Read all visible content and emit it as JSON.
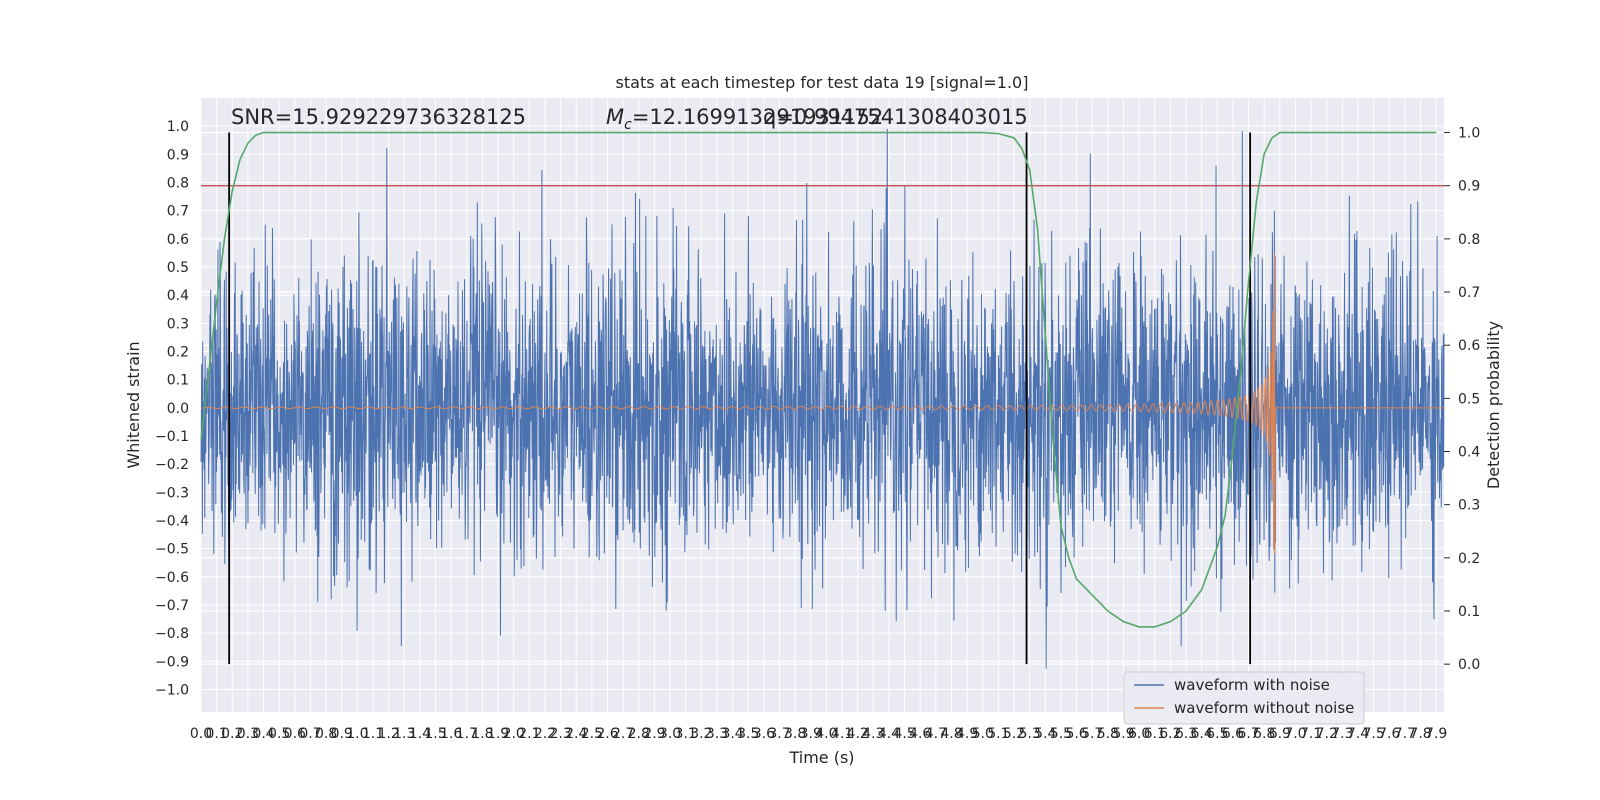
{
  "chart_data": {
    "type": "line",
    "title": "stats at each timestep for test data 19 [signal=1.0]",
    "xlabel": "Time (s)",
    "ylabel": "Whitened strain",
    "ylabel_right": "Detection probability",
    "xlim": [
      0.0,
      7.95
    ],
    "ylim": [
      -1.08,
      1.1
    ],
    "ylim_right": [
      -0.09,
      1.065
    ],
    "x_ticks": [
      "0.0",
      "0.1",
      "0.2",
      "0.3",
      "0.4",
      "0.5",
      "0.6",
      "0.7",
      "0.8",
      "0.9",
      "1.0",
      "1.1",
      "1.2",
      "1.3",
      "1.4",
      "1.5",
      "1.6",
      "1.7",
      "1.8",
      "1.9",
      "2.0",
      "2.1",
      "2.2",
      "2.3",
      "2.4",
      "2.5",
      "2.6",
      "2.7",
      "2.8",
      "2.9",
      "3.0",
      "3.1",
      "3.2",
      "3.3",
      "3.4",
      "3.5",
      "3.6",
      "3.7",
      "3.8",
      "3.9",
      "4.0",
      "4.1",
      "4.2",
      "4.3",
      "4.4",
      "4.5",
      "4.6",
      "4.7",
      "4.8",
      "4.9",
      "5.0",
      "5.1",
      "5.2",
      "5.3",
      "5.4",
      "5.5",
      "5.6",
      "5.7",
      "5.8",
      "5.9",
      "6.0",
      "6.1",
      "6.2",
      "6.3",
      "6.4",
      "6.5",
      "6.6",
      "6.7",
      "6.8",
      "6.9",
      "7.0",
      "7.1",
      "7.2",
      "7.3",
      "7.4",
      "7.5",
      "7.6",
      "7.7",
      "7.8",
      "7.9"
    ],
    "y_ticks_left": [
      "1.0",
      "0.9",
      "0.8",
      "0.7",
      "0.6",
      "0.5",
      "0.4",
      "0.3",
      "0.2",
      "0.1",
      "0.0",
      "−0.1",
      "−0.2",
      "−0.3",
      "−0.4",
      "−0.5",
      "−0.6",
      "−0.7",
      "−0.8",
      "−0.9",
      "−1.0"
    ],
    "y_ticks_right": [
      "1.0",
      "0.9",
      "0.8",
      "0.7",
      "0.6",
      "0.5",
      "0.4",
      "0.3",
      "0.2",
      "0.1",
      "0.0"
    ],
    "annotations": {
      "snr": "SNR=15.929229736328125",
      "mc": "=12.169913291931152",
      "mc_symbol": "M",
      "mc_subscript": "c",
      "q": "q=0.9947541308403015"
    },
    "threshold_line": {
      "y_right": 0.9,
      "color": "#c44e52"
    },
    "vertical_lines": [
      0.18,
      5.28,
      6.71
    ],
    "series": [
      {
        "name": "waveform with noise",
        "color": "#4c72b0"
      },
      {
        "name": "waveform without noise",
        "color": "#dd8452"
      },
      {
        "color": "#55a868",
        "axis": "right",
        "x": [
          0.0,
          0.05,
          0.1,
          0.15,
          0.2,
          0.25,
          0.3,
          0.35,
          0.4,
          0.5,
          0.6,
          1.0,
          2.0,
          3.0,
          4.0,
          5.0,
          5.1,
          5.2,
          5.25,
          5.3,
          5.35,
          5.4,
          5.45,
          5.5,
          5.55,
          5.6,
          5.7,
          5.8,
          5.9,
          6.0,
          6.1,
          6.2,
          6.3,
          6.4,
          6.5,
          6.55,
          6.6,
          6.65,
          6.7,
          6.75,
          6.8,
          6.85,
          6.9,
          7.0,
          7.5,
          7.9
        ],
        "values": [
          0.42,
          0.55,
          0.68,
          0.8,
          0.89,
          0.95,
          0.98,
          0.995,
          1.0,
          1.0,
          1.0,
          1.0,
          1.0,
          1.0,
          1.0,
          1.0,
          0.998,
          0.99,
          0.97,
          0.93,
          0.82,
          0.62,
          0.42,
          0.26,
          0.2,
          0.16,
          0.13,
          0.1,
          0.08,
          0.07,
          0.07,
          0.08,
          0.1,
          0.14,
          0.22,
          0.28,
          0.4,
          0.55,
          0.72,
          0.87,
          0.96,
          0.99,
          1.0,
          1.0,
          1.0,
          1.0
        ]
      }
    ],
    "legend_position": "lower-right",
    "grid": true
  }
}
